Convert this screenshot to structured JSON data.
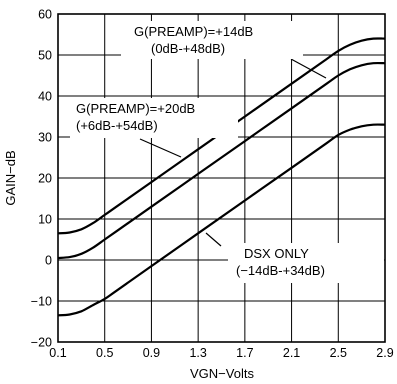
{
  "chart_data": {
    "type": "line",
    "xlabel": "VGN−Volts",
    "ylabel": "GAIN−dB",
    "xlim": [
      0.1,
      2.9
    ],
    "ylim": [
      -20,
      60
    ],
    "x_ticks": [
      "0.1",
      "0.5",
      "0.9",
      "1.3",
      "1.7",
      "2.1",
      "2.5",
      "2.9"
    ],
    "y_ticks": [
      "−20",
      "−10",
      "0",
      "10",
      "20",
      "30",
      "40",
      "50",
      "60"
    ],
    "grid": true,
    "series": [
      {
        "name": "G(PREAMP)=+20dB",
        "x": [
          0.1,
          0.2,
          0.3,
          0.4,
          0.5,
          0.6,
          0.9,
          1.3,
          1.7,
          2.1,
          2.4,
          2.5,
          2.6,
          2.7,
          2.8,
          2.9
        ],
        "y": [
          6.5,
          6.7,
          7.5,
          9,
          11,
          13,
          19,
          27,
          35,
          43,
          49,
          51,
          52.5,
          53.5,
          54,
          54
        ]
      },
      {
        "name": "G(PREAMP)=+14dB",
        "x": [
          0.1,
          0.2,
          0.3,
          0.4,
          0.5,
          0.6,
          0.9,
          1.3,
          1.7,
          2.1,
          2.4,
          2.5,
          2.6,
          2.7,
          2.8,
          2.9
        ],
        "y": [
          0.5,
          0.7,
          1.5,
          3,
          5,
          7,
          13,
          21,
          29,
          37,
          43,
          45,
          46.5,
          47.5,
          48,
          48
        ]
      },
      {
        "name": "DSX ONLY",
        "x": [
          0.1,
          0.2,
          0.3,
          0.4,
          0.5,
          0.6,
          0.9,
          1.3,
          1.7,
          2.1,
          2.4,
          2.5,
          2.6,
          2.7,
          2.8,
          2.9
        ],
        "y": [
          -13.5,
          -13.3,
          -12.5,
          -11,
          -9.5,
          -7.5,
          -1.5,
          6.5,
          14.5,
          22.5,
          28.5,
          30.5,
          31.8,
          32.6,
          33,
          33
        ]
      }
    ],
    "annotations": [
      {
        "text1": "G(PREAMP)=+14dB",
        "text2": "(0dB-+48dB)"
      },
      {
        "text1": "G(PREAMP)=+20dB",
        "text2": "(+6dB-+54dB)"
      },
      {
        "text1": "DSX ONLY",
        "text2": "(−14dB-+34dB)"
      }
    ]
  }
}
